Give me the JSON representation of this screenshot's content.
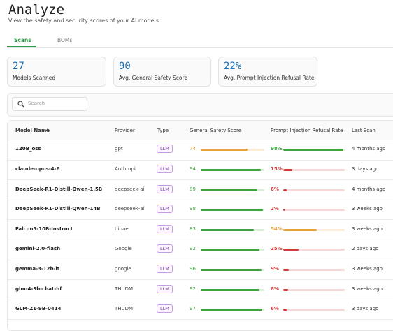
{
  "header": {
    "title": "Analyze",
    "subtitle": "View the safety and security scores of your AI models"
  },
  "tabs": [
    "Scans",
    "BOMs"
  ],
  "stats": [
    {
      "value": 27,
      "label": "Models Scanned"
    },
    {
      "value": 90,
      "label": "Avg. General Safety Score"
    },
    {
      "value": "22%",
      "label": "Avg. Prompt Injection Refusal Rate"
    }
  ],
  "search": {
    "placeholder": "Search"
  },
  "table": {
    "columns": [
      "Model Name",
      "Provider",
      "Type",
      "General Safety Score",
      "Prompt Injection Refusal Rate",
      "Last Scan"
    ],
    "rows": [
      {
        "model": "120B_oss",
        "provider": "gpt",
        "type": "LLM",
        "safety": {
          "value": 74,
          "color": "#e8a23b"
        },
        "injection": {
          "value": 98,
          "label": "98%",
          "color": "#3fa33f"
        },
        "last_scan": "4 months ago"
      },
      {
        "model": "claude-opus-4-6",
        "provider": "Anthropic",
        "type": "LLM",
        "safety": {
          "value": 94,
          "color": "#3fa33f"
        },
        "injection": {
          "value": 15,
          "label": "15%",
          "color": "#d23b3b"
        },
        "last_scan": "3 days ago"
      },
      {
        "model": "DeepSeek-R1-Distill-Qwen-1.5B",
        "provider": "deepseek-ai",
        "type": "LLM",
        "safety": {
          "value": 89,
          "color": "#3fa33f"
        },
        "injection": {
          "value": 6,
          "label": "6%",
          "color": "#d23b3b"
        },
        "last_scan": "4 months ago"
      },
      {
        "model": "DeepSeek-R1-Distill-Qwen-14B",
        "provider": "deepseek-ai",
        "type": "LLM",
        "safety": {
          "value": 98,
          "color": "#3fa33f"
        },
        "injection": {
          "value": 2,
          "label": "2%",
          "color": "#d23b3b"
        },
        "last_scan": "3 weeks ago"
      },
      {
        "model": "Falcon3-10B-Instruct",
        "provider": "tiiuae",
        "type": "LLM",
        "safety": {
          "value": 83,
          "color": "#3fa33f"
        },
        "injection": {
          "value": 54,
          "label": "54%",
          "color": "#e8a23b"
        },
        "last_scan": "3 weeks ago"
      },
      {
        "model": "gemini-2.0-flash",
        "provider": "Google",
        "type": "LLM",
        "safety": {
          "value": 92,
          "color": "#3fa33f"
        },
        "injection": {
          "value": 25,
          "label": "25%",
          "color": "#d23b3b"
        },
        "last_scan": "2 days ago"
      },
      {
        "model": "gemma-3-12b-it",
        "provider": "google",
        "type": "LLM",
        "safety": {
          "value": 96,
          "color": "#3fa33f"
        },
        "injection": {
          "value": 9,
          "label": "9%",
          "color": "#d23b3b"
        },
        "last_scan": "3 weeks ago"
      },
      {
        "model": "glm-4-9b-chat-hf",
        "provider": "THUDM",
        "type": "LLM",
        "safety": {
          "value": 92,
          "color": "#3fa33f"
        },
        "injection": {
          "value": 8,
          "label": "8%",
          "color": "#d23b3b"
        },
        "last_scan": "3 weeks ago"
      },
      {
        "model": "GLM-Z1-9B-0414",
        "provider": "THUDM",
        "type": "LLM",
        "safety": {
          "value": 97,
          "color": "#3fa33f"
        },
        "injection": {
          "value": 6,
          "label": "6%",
          "color": "#d23b3b"
        },
        "last_scan": "3 days ago"
      }
    ]
  }
}
